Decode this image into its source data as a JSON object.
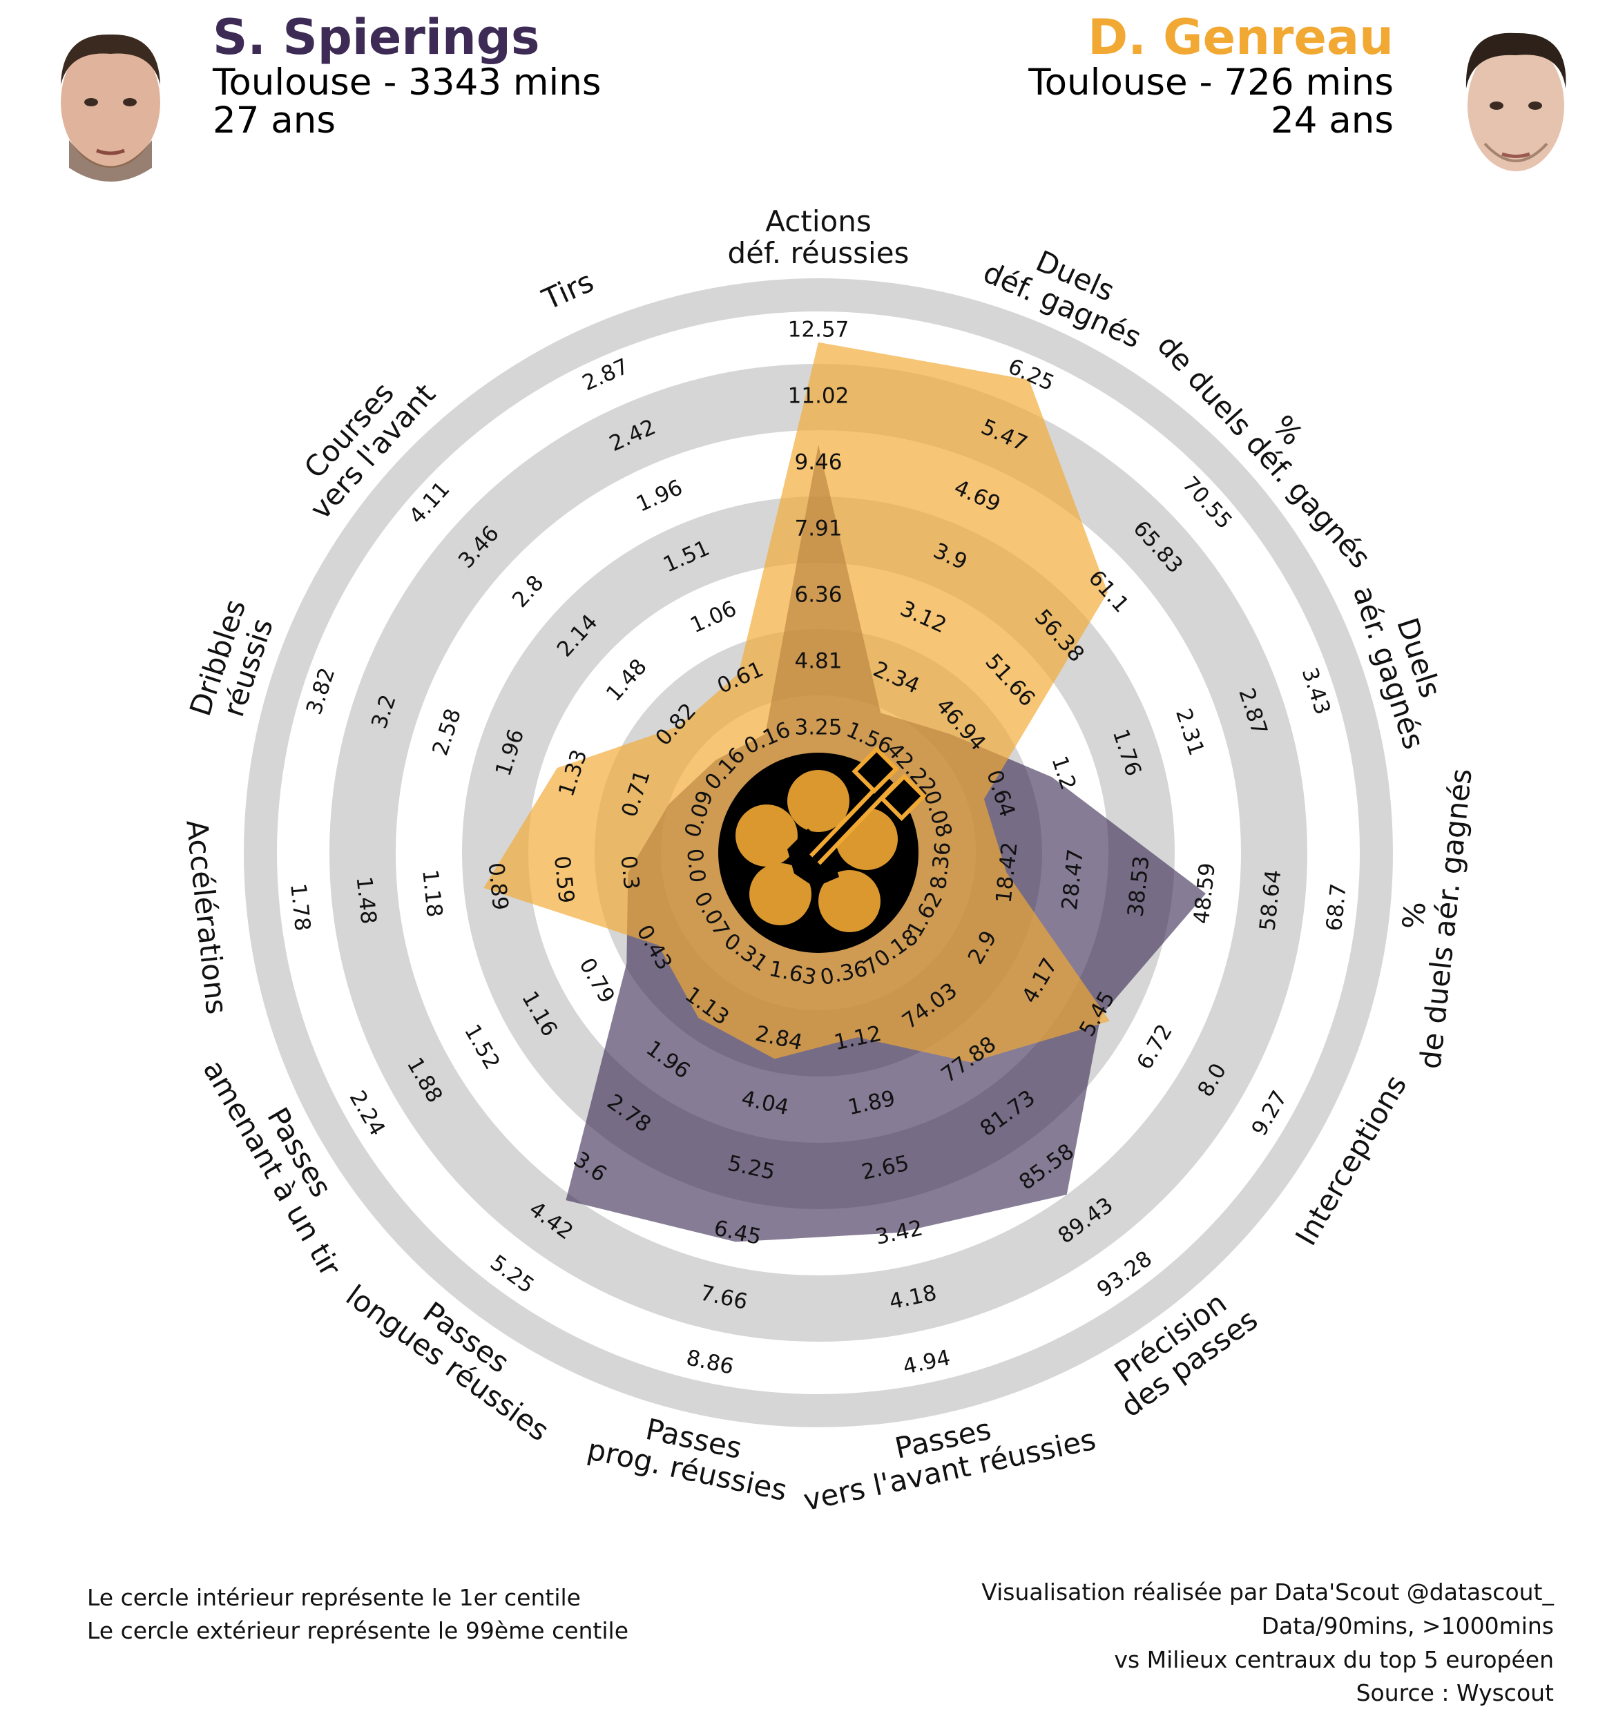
{
  "player_left": {
    "name": "S. Spierings",
    "line1": "Toulouse - 3343 mins",
    "line2": "27 ans",
    "color": "#3d2b56"
  },
  "player_right": {
    "name": "D. Genreau",
    "line1": "Toulouse - 726 mins",
    "line2": "24 ans",
    "color": "#f2a934"
  },
  "footer_left": {
    "line1": "Le cercle intérieur représente le 1er centile",
    "line2": "Le cercle extérieur représente le 99ème centile"
  },
  "footer_right": {
    "line1": "Visualisation réalisée par Data'Scout @datascout_",
    "line2": "Data/90mins, >1000mins",
    "line3": "vs Milieux centraux du top 5 européen",
    "line4": "Source : Wyscout"
  },
  "colors": {
    "ring_gray": "#d6d6d6",
    "series_left": "#3d2b56",
    "series_right": "#f2a934"
  },
  "icons": [
    "player-photo-spierings",
    "player-photo-genreau",
    "datascout-logo"
  ],
  "chart_data": {
    "type": "radar",
    "title": "",
    "center_label_index": 0,
    "axes": [
      {
        "label": [
          "Actions",
          "déf. réussies"
        ],
        "ticks": [
          "3.25",
          "4.81",
          "6.36",
          "7.91",
          "9.46",
          "11.02",
          "12.57"
        ]
      },
      {
        "label": [
          "Duels",
          "déf. gagnés"
        ],
        "ticks": [
          "1.56",
          "2.34",
          "3.12",
          "3.9",
          "4.69",
          "5.47",
          "6.25"
        ]
      },
      {
        "label": [
          "%",
          "de duels déf. gagnés"
        ],
        "ticks": [
          "42.22",
          "46.94",
          "51.66",
          "56.38",
          "61.1",
          "65.83",
          "70.55"
        ]
      },
      {
        "label": [
          "Duels",
          "aér. gagnés"
        ],
        "ticks": [
          "0.08",
          "0.64",
          "1.2",
          "1.76",
          "2.31",
          "2.87",
          "3.43"
        ]
      },
      {
        "label": [
          "%",
          "de duels aér. gagnés"
        ],
        "ticks": [
          "8.36",
          "18.42",
          "28.47",
          "38.53",
          "48.59",
          "58.64",
          "68.7"
        ]
      },
      {
        "label": [
          "Interceptions"
        ],
        "ticks": [
          "1.62",
          "2.9",
          "4.17",
          "5.45",
          "6.72",
          "8.0",
          "9.27"
        ]
      },
      {
        "label": [
          "Précision",
          "des passes"
        ],
        "ticks": [
          "70.18",
          "74.03",
          "77.88",
          "81.73",
          "85.58",
          "89.43",
          "93.28"
        ]
      },
      {
        "label": [
          "Passes",
          "vers l'avant réussies"
        ],
        "ticks": [
          "0.36",
          "1.12",
          "1.89",
          "2.65",
          "3.42",
          "4.18",
          "4.94"
        ]
      },
      {
        "label": [
          "Passes",
          "prog. réussies"
        ],
        "ticks": [
          "1.63",
          "2.84",
          "4.04",
          "5.25",
          "6.45",
          "7.66",
          "8.86"
        ]
      },
      {
        "label": [
          "Passes",
          "longues réussies"
        ],
        "ticks": [
          "0.31",
          "1.13",
          "1.96",
          "2.78",
          "3.6",
          "4.42",
          "5.25"
        ]
      },
      {
        "label": [
          "Passes",
          "amenant à un tir"
        ],
        "ticks": [
          "0.07",
          "0.43",
          "0.79",
          "1.16",
          "1.52",
          "1.88",
          "2.24"
        ]
      },
      {
        "label": [
          "Accélérations"
        ],
        "ticks": [
          "0.0",
          "0.3",
          "0.59",
          "0.89",
          "1.18",
          "1.48",
          "1.78"
        ]
      },
      {
        "label": [
          "Dribbles",
          "réussis"
        ],
        "ticks": [
          "0.09",
          "0.71",
          "1.33",
          "1.96",
          "2.58",
          "3.2",
          "3.82"
        ]
      },
      {
        "label": [
          "Courses",
          "vers l'avant"
        ],
        "ticks": [
          "0.16",
          "0.82",
          "1.48",
          "2.14",
          "2.8",
          "3.46",
          "4.11"
        ]
      },
      {
        "label": [
          "Tirs"
        ],
        "ticks": [
          "0.16",
          "0.61",
          "1.06",
          "1.51",
          "1.96",
          "2.42",
          "2.87"
        ]
      }
    ],
    "series": [
      {
        "name": "S. Spierings",
        "values": [
          9.9,
          1.9,
          46.0,
          1.1,
          48.6,
          5.5,
          87.5,
          3.4,
          6.6,
          4.1,
          0.6,
          0.3,
          0.4,
          0.3,
          0.2
        ]
      },
      {
        "name": "D. Genreau",
        "values": [
          12.3,
          6.2,
          61.1,
          0.5,
          18.2,
          5.7,
          78.0,
          1.1,
          3.2,
          1.3,
          0.4,
          0.95,
          1.5,
          0.8,
          0.65
        ]
      }
    ]
  }
}
